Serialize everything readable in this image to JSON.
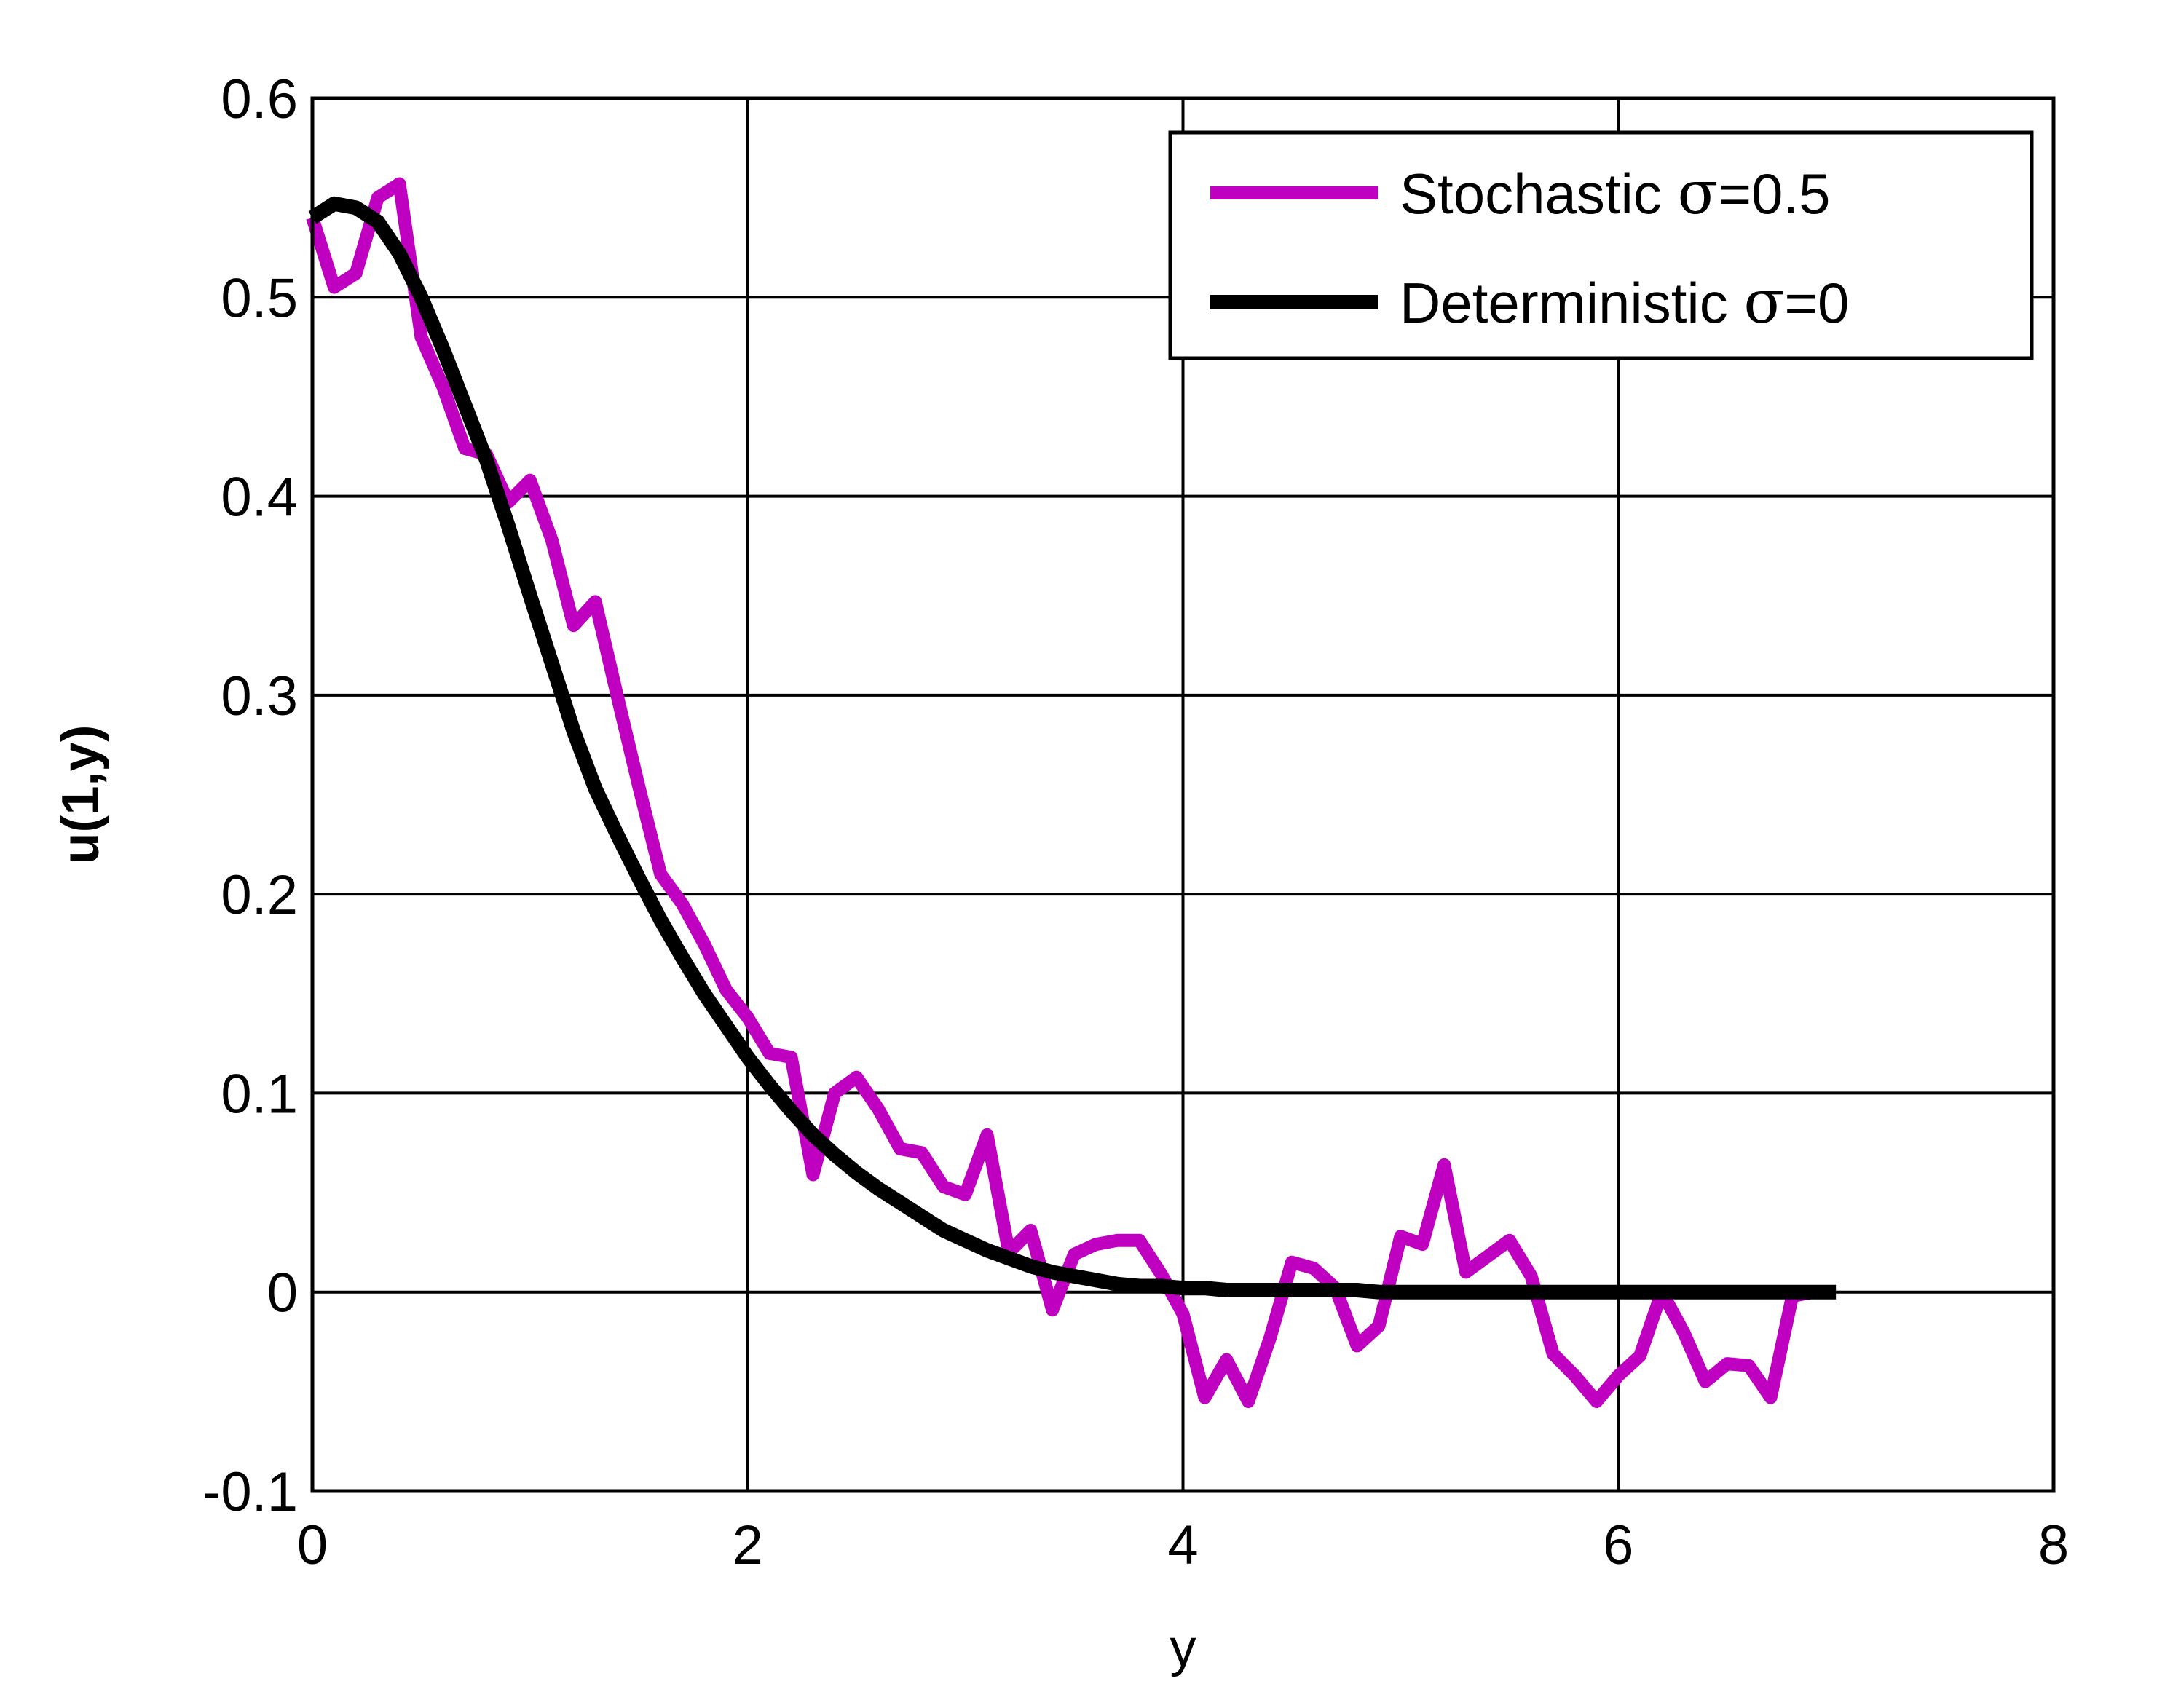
{
  "chart_data": {
    "type": "line",
    "xlabel": "y",
    "ylabel": "u(1,y)",
    "xlim": [
      0,
      8
    ],
    "ylim": [
      -0.1,
      0.6
    ],
    "x_ticks": [
      0,
      2,
      4,
      6,
      8
    ],
    "x_tick_labels": [
      "0",
      "2",
      "4",
      "6",
      "8"
    ],
    "y_ticks": [
      -0.1,
      0,
      0.1,
      0.2,
      0.3,
      0.4,
      0.5,
      0.6
    ],
    "y_tick_labels": [
      "-0.1",
      "0",
      "0.1",
      "0.2",
      "0.3",
      "0.4",
      "0.5",
      "0.6"
    ],
    "grid": true,
    "legend_position": "top-right",
    "series": [
      {
        "name": "Stochastic σ=0.5",
        "legend_prefix": "Stochastic ",
        "legend_symbol": "σ",
        "legend_suffix": "=0.5",
        "color": "#c000c0",
        "x": [
          0.0,
          0.1,
          0.2,
          0.3,
          0.4,
          0.5,
          0.6,
          0.7,
          0.8,
          0.9,
          1.0,
          1.1,
          1.2,
          1.3,
          1.4,
          1.5,
          1.6,
          1.7,
          1.8,
          1.9,
          2.0,
          2.1,
          2.2,
          2.3,
          2.4,
          2.5,
          2.6,
          2.7,
          2.8,
          2.9,
          3.0,
          3.1,
          3.2,
          3.3,
          3.4,
          3.5,
          3.6,
          3.7,
          3.8,
          3.9,
          4.0,
          4.1,
          4.2,
          4.3,
          4.4,
          4.5,
          4.6,
          4.7,
          4.8,
          4.9,
          5.0,
          5.1,
          5.2,
          5.3,
          5.4,
          5.5,
          5.6,
          5.7,
          5.8,
          5.9,
          6.0,
          6.1,
          6.2,
          6.3,
          6.4,
          6.5,
          6.6,
          6.7,
          6.8,
          6.9,
          7.0
        ],
        "y": [
          0.54,
          0.505,
          0.512,
          0.55,
          0.557,
          0.48,
          0.455,
          0.424,
          0.421,
          0.397,
          0.408,
          0.378,
          0.335,
          0.347,
          0.3,
          0.254,
          0.21,
          0.195,
          0.175,
          0.152,
          0.138,
          0.12,
          0.118,
          0.059,
          0.1,
          0.108,
          0.092,
          0.072,
          0.07,
          0.053,
          0.049,
          0.079,
          0.02,
          0.031,
          -0.009,
          0.019,
          0.024,
          0.026,
          0.026,
          0.009,
          -0.011,
          -0.053,
          -0.034,
          -0.055,
          -0.023,
          0.015,
          0.012,
          0.002,
          -0.027,
          -0.017,
          0.028,
          0.024,
          0.064,
          0.01,
          0.018,
          0.026,
          0.008,
          -0.031,
          -0.042,
          -0.055,
          -0.042,
          -0.032,
          0.0,
          -0.02,
          -0.045,
          -0.036,
          -0.037,
          -0.053,
          -0.002,
          0.0,
          0.0
        ]
      },
      {
        "name": "Deterministic σ=0",
        "legend_prefix": "Deterministic ",
        "legend_symbol": "σ",
        "legend_suffix": "=0",
        "color": "#000000",
        "x": [
          0.0,
          0.1,
          0.2,
          0.3,
          0.4,
          0.5,
          0.6,
          0.7,
          0.8,
          0.9,
          1.0,
          1.1,
          1.2,
          1.3,
          1.4,
          1.5,
          1.6,
          1.7,
          1.8,
          1.9,
          2.0,
          2.1,
          2.2,
          2.3,
          2.4,
          2.5,
          2.6,
          2.7,
          2.8,
          2.9,
          3.0,
          3.1,
          3.2,
          3.3,
          3.4,
          3.5,
          3.6,
          3.7,
          3.8,
          3.9,
          4.0,
          4.1,
          4.2,
          4.3,
          4.4,
          4.5,
          4.6,
          4.7,
          4.8,
          4.9,
          5.0,
          5.5,
          6.0,
          6.5,
          7.0
        ],
        "y": [
          0.54,
          0.547,
          0.545,
          0.538,
          0.522,
          0.5,
          0.474,
          0.446,
          0.418,
          0.385,
          0.35,
          0.316,
          0.282,
          0.253,
          0.23,
          0.208,
          0.187,
          0.168,
          0.15,
          0.134,
          0.118,
          0.104,
          0.091,
          0.079,
          0.069,
          0.06,
          0.052,
          0.045,
          0.038,
          0.031,
          0.026,
          0.021,
          0.017,
          0.013,
          0.01,
          0.008,
          0.006,
          0.004,
          0.003,
          0.003,
          0.002,
          0.002,
          0.001,
          0.001,
          0.001,
          0.001,
          0.001,
          0.001,
          0.001,
          0.0,
          0.0,
          0.0,
          0.0,
          0.0,
          0.0
        ]
      }
    ]
  }
}
